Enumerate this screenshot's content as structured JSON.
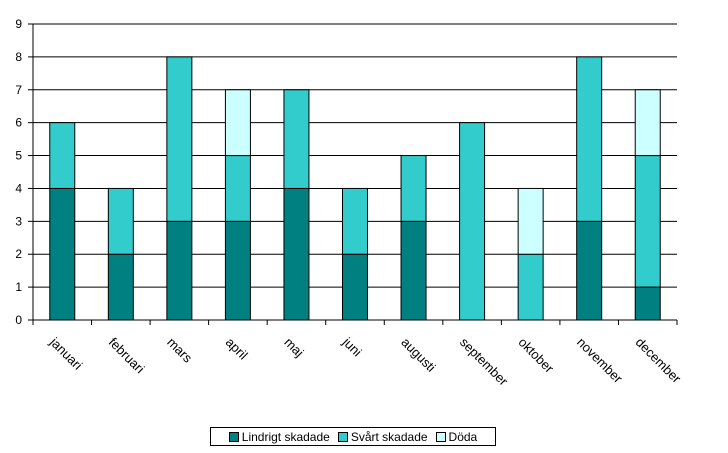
{
  "chart_data": {
    "type": "bar",
    "stacked": true,
    "categories": [
      "januari",
      "februari",
      "mars",
      "april",
      "maj",
      "juni",
      "augusti",
      "september",
      "oktober",
      "november",
      "december"
    ],
    "series": [
      {
        "name": "Lindrigt skadade",
        "color": "#008080",
        "values": [
          4,
          2,
          3,
          3,
          4,
          2,
          3,
          0,
          0,
          3,
          1
        ]
      },
      {
        "name": "Svårt skadade",
        "color": "#33CCCC",
        "values": [
          2,
          2,
          5,
          2,
          3,
          2,
          2,
          6,
          2,
          5,
          4
        ]
      },
      {
        "name": "Döda",
        "color": "#CCFFFF",
        "values": [
          0,
          0,
          0,
          2,
          0,
          0,
          0,
          0,
          2,
          0,
          2
        ]
      }
    ],
    "title": "",
    "xlabel": "",
    "ylabel": "",
    "ylim": [
      0,
      9
    ],
    "yticks": [
      "0",
      "1",
      "2",
      "3",
      "4",
      "5",
      "6",
      "7",
      "8",
      "9"
    ],
    "grid": true,
    "legend_position": "bottom"
  }
}
